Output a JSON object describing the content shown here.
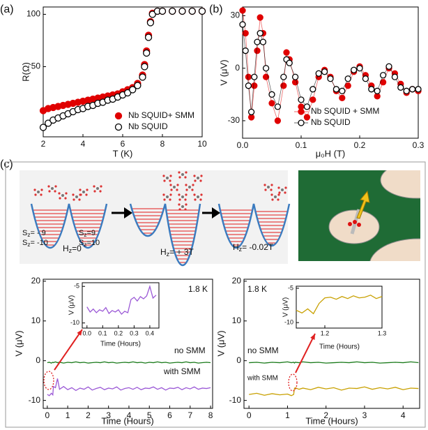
{
  "panel_labels": [
    "(a)",
    "(b)",
    "(c)"
  ],
  "diagram": {
    "labels": [
      {
        "base": "S",
        "sub": "z",
        "rest": "= - 9"
      },
      {
        "base": "S",
        "sub": "z",
        "rest": "= -10"
      },
      {
        "base": "S",
        "sub": "z",
        "rest": "=9"
      },
      {
        "base": "S",
        "sub": "z",
        "rest": "=10"
      },
      {
        "base": "H",
        "sub": "z",
        "rest": "=0"
      },
      {
        "base": "H",
        "sub": "z",
        "rest": "= + 3T"
      },
      {
        "base": "H",
        "sub": "z",
        "rest": "= -0.02T"
      }
    ]
  },
  "chart_data": [
    {
      "type": "scatter",
      "xlabel": "T (K)",
      "ylabel": "R(Ω)",
      "xlim": [
        2,
        10
      ],
      "ylim": [
        -17,
        107
      ],
      "xticks": [
        2,
        4,
        6,
        8,
        10
      ],
      "yticks": [
        50,
        100
      ],
      "legend": "lower right",
      "x": [
        2,
        2.25,
        2.5,
        2.75,
        3,
        3.25,
        3.5,
        3.75,
        4,
        4.25,
        4.5,
        4.75,
        5,
        5.25,
        5.5,
        5.75,
        6,
        6.25,
        6.5,
        6.75,
        7,
        7.1,
        7.2,
        7.3,
        7.4,
        7.5,
        7.75,
        8,
        8.5,
        9,
        9.5,
        10
      ],
      "series": [
        {
          "name": "Nb SQUID+ SMM",
          "color": "#e00000",
          "fill": "#e00000",
          "values": [
            8,
            10,
            11,
            12,
            13,
            14,
            15,
            16,
            17,
            18,
            19,
            20,
            21,
            22,
            23,
            24,
            26,
            28,
            30,
            34,
            42,
            52,
            65,
            80,
            93,
            101,
            103,
            103,
            103,
            103,
            103,
            103
          ]
        },
        {
          "name": "Nb SQUID",
          "color": "#000000",
          "fill": "#ffffff",
          "values": [
            -8,
            -4,
            -1,
            1,
            3,
            5,
            7,
            9,
            10,
            12,
            13,
            15,
            16,
            18,
            19,
            21,
            23,
            25,
            28,
            32,
            40,
            50,
            63,
            78,
            92,
            100,
            103,
            103,
            103,
            103,
            103,
            103
          ]
        }
      ]
    },
    {
      "type": "line",
      "markers": true,
      "xlabel": "μ₀H (T)",
      "ylabel": "V (μV)",
      "xlim": [
        0,
        0.3
      ],
      "ylim": [
        -40,
        35
      ],
      "xticks": [
        {
          "value": 0,
          "label": "0.0"
        },
        0.1,
        0.2,
        0.3
      ],
      "yticks": [
        -30,
        0,
        30
      ],
      "legend": "lower right",
      "x": [
        0,
        0.005,
        0.01,
        0.015,
        0.02,
        0.025,
        0.03,
        0.035,
        0.04,
        0.05,
        0.06,
        0.07,
        0.075,
        0.08,
        0.09,
        0.1,
        0.11,
        0.12,
        0.13,
        0.14,
        0.15,
        0.16,
        0.17,
        0.18,
        0.19,
        0.2,
        0.21,
        0.22,
        0.23,
        0.24,
        0.25,
        0.26,
        0.27,
        0.28,
        0.29,
        0.3
      ],
      "series": [
        {
          "name": "Nb SQUID + SMM",
          "color": "#e00000",
          "fill": "#e00000",
          "values": [
            33,
            20,
            -5,
            -28,
            -10,
            10,
            29,
            20,
            -5,
            -20,
            -30,
            -10,
            9,
            5,
            -8,
            -22,
            -28,
            -18,
            -5,
            -1,
            -5,
            -13,
            -17,
            -10,
            -2,
            1,
            -4,
            -10,
            -16,
            -8,
            0,
            -3,
            -9,
            -14,
            -12,
            -13
          ]
        },
        {
          "name": "Nb SQUID",
          "color": "#000000",
          "fill": "#ffffff",
          "values": [
            25,
            10,
            -10,
            -25,
            -5,
            15,
            20,
            15,
            0,
            -15,
            -22,
            -5,
            5,
            3,
            -5,
            -18,
            -22,
            -12,
            -3,
            -2,
            -6,
            -12,
            -13,
            -6,
            -1,
            0,
            -6,
            -12,
            -13,
            -4,
            1,
            -5,
            -11,
            -13,
            -12,
            -12
          ]
        }
      ]
    },
    {
      "type": "line",
      "xlabel": "Time (Hours)",
      "ylabel": "V (μV)",
      "xlim": [
        -0.2,
        8.1
      ],
      "ylim": [
        -12,
        20.5
      ],
      "xticks": [
        0,
        1,
        2,
        3,
        4,
        5,
        6,
        7,
        8
      ],
      "yticks": [
        -10,
        0,
        10,
        20
      ],
      "annotations": [
        "1.8 K",
        "no SMM",
        "with SMM"
      ],
      "x": [
        0,
        0.1,
        0.2,
        0.27,
        0.3,
        0.4,
        0.5,
        0.6,
        0.8,
        1,
        1.2,
        1.4,
        1.6,
        1.8,
        2,
        2.2,
        2.4,
        2.6,
        2.8,
        3,
        3.2,
        3.4,
        3.6,
        3.8,
        4,
        4.2,
        4.4,
        4.6,
        4.8,
        5,
        5.2,
        5.4,
        5.6,
        5.8,
        6,
        6.2,
        6.4,
        6.6,
        6.8,
        7,
        7.2,
        7.4,
        7.6,
        7.8,
        8
      ],
      "series": [
        {
          "name": "no SMM",
          "color": "#1a7a1a",
          "values": [
            -0.5,
            -0.4,
            -0.6,
            -0.4,
            -0.5,
            -0.3,
            -0.5,
            -0.4,
            -0.6,
            -0.4,
            -0.5,
            -0.3,
            -0.5,
            -0.4,
            -0.6,
            -0.5,
            -0.4,
            -0.5,
            -0.3,
            -0.5,
            -0.4,
            -0.6,
            -0.5,
            -0.4,
            -0.5,
            -0.3,
            -0.5,
            -0.4,
            -0.6,
            -0.4,
            -0.5,
            -0.3,
            -0.5,
            -0.4,
            -0.6,
            -0.5,
            -0.4,
            -0.5,
            -0.3,
            -0.5,
            -0.4,
            -0.6,
            -0.5,
            -0.4,
            -0.5
          ]
        },
        {
          "name": "with SMM",
          "color": "#9b59d6",
          "values": [
            -8.5,
            -8.8,
            -8.2,
            -8.6,
            -6.5,
            -6.8,
            -4.5,
            -7.2,
            -6.5,
            -7.3,
            -6.8,
            -7.5,
            -6.9,
            -7.2,
            -6.6,
            -7.4,
            -7.0,
            -6.7,
            -7.3,
            -6.9,
            -7.1,
            -6.6,
            -7.4,
            -7.0,
            -6.8,
            -7.2,
            -6.7,
            -7.3,
            -6.9,
            -7.0,
            -6.6,
            -7.2,
            -6.8,
            -7.4,
            -6.9,
            -7.0,
            -6.7,
            -7.3,
            -6.8,
            -7.1,
            -6.6,
            -7.2,
            -6.9,
            -7.0,
            -6.8
          ]
        }
      ]
    },
    {
      "type": "line",
      "xlabel": "Time (Hours)",
      "ylabel": "V (μV)",
      "xlim": [
        -0.03,
        0.458
      ],
      "ylim": [
        -10.7,
        -4.5
      ],
      "xticks": [
        {
          "value": 0,
          "label": "0.0"
        },
        0.1,
        0.2,
        0.3,
        0.4
      ],
      "yticks": [
        -10,
        -5
      ],
      "x": [
        0,
        0.02,
        0.04,
        0.06,
        0.08,
        0.1,
        0.12,
        0.14,
        0.16,
        0.18,
        0.2,
        0.22,
        0.24,
        0.26,
        0.28,
        0.3,
        0.32,
        0.34,
        0.36,
        0.38,
        0.4,
        0.42,
        0.44
      ],
      "series": [
        {
          "name": "with SMM",
          "color": "#9b59d6",
          "values": [
            -7.8,
            -8.5,
            -8.1,
            -8.6,
            -8.2,
            -8.4,
            -7.9,
            -8.7,
            -8.3,
            -8.5,
            -8.2,
            -8.8,
            -8.4,
            -8.6,
            -6.8,
            -6.5,
            -7.0,
            -6.4,
            -6.7,
            -6.3,
            -5.0,
            -6.6,
            -6.2
          ]
        }
      ]
    },
    {
      "type": "line",
      "xlabel": "Time (Hours)",
      "ylabel": "V (μV)",
      "xlim": [
        -0.13,
        4.43
      ],
      "ylim": [
        -12,
        20.5
      ],
      "xticks": [
        0,
        1,
        2,
        3,
        4
      ],
      "yticks": [
        -10,
        0,
        10,
        20
      ],
      "annotations": [
        "1.8 K",
        "no SMM",
        "with SMM"
      ],
      "x": [
        0,
        0.2,
        0.4,
        0.6,
        0.8,
        1.0,
        1.1,
        1.16,
        1.18,
        1.2,
        1.3,
        1.4,
        1.6,
        1.8,
        2,
        2.2,
        2.4,
        2.6,
        2.8,
        3,
        3.2,
        3.4,
        3.6,
        3.8,
        4,
        4.2,
        4.4
      ],
      "series": [
        {
          "name": "no SMM",
          "color": "#1a7a1a",
          "values": [
            -0.5,
            -0.4,
            -0.6,
            -0.4,
            -0.5,
            -0.3,
            -0.5,
            -0.4,
            -0.6,
            -0.4,
            -0.5,
            -0.3,
            -0.5,
            -0.4,
            -0.6,
            -0.5,
            -0.4,
            -0.5,
            -0.3,
            -0.5,
            -0.4,
            -0.6,
            -0.5,
            -0.4,
            -0.5,
            -0.3,
            -0.5
          ]
        },
        {
          "name": "with SMM",
          "color": "#c8a000",
          "values": [
            -8.5,
            -8.2,
            -8.7,
            -8.3,
            -8.6,
            -8.4,
            -8.8,
            -8.5,
            -7.0,
            -6.8,
            -7.2,
            -6.9,
            -7.3,
            -6.7,
            -7.1,
            -6.8,
            -7.4,
            -6.9,
            -7.0,
            -6.6,
            -7.2,
            -6.8,
            -7.1,
            -6.7,
            -7.3,
            -6.9,
            -7.0
          ]
        }
      ]
    },
    {
      "type": "line",
      "xlabel": "Time (Hours)",
      "ylabel": "V (μV)",
      "xlim": [
        1.15,
        1.3
      ],
      "ylim": [
        -10.8,
        -4.7
      ],
      "xticks": [
        1.2,
        1.3
      ],
      "yticks": [
        -10,
        -5
      ],
      "x": [
        1.15,
        1.16,
        1.17,
        1.18,
        1.19,
        1.2,
        1.21,
        1.22,
        1.23,
        1.24,
        1.25,
        1.26,
        1.27,
        1.28,
        1.29,
        1.3
      ],
      "series": [
        {
          "name": "with SMM",
          "color": "#c8a000",
          "values": [
            -8.2,
            -8.6,
            -8.0,
            -8.7,
            -7.2,
            -6.4,
            -6.3,
            -6.6,
            -6.2,
            -6.5,
            -6.1,
            -6.4,
            -6.3,
            -6.0,
            -6.5,
            -6.2
          ]
        }
      ]
    }
  ]
}
